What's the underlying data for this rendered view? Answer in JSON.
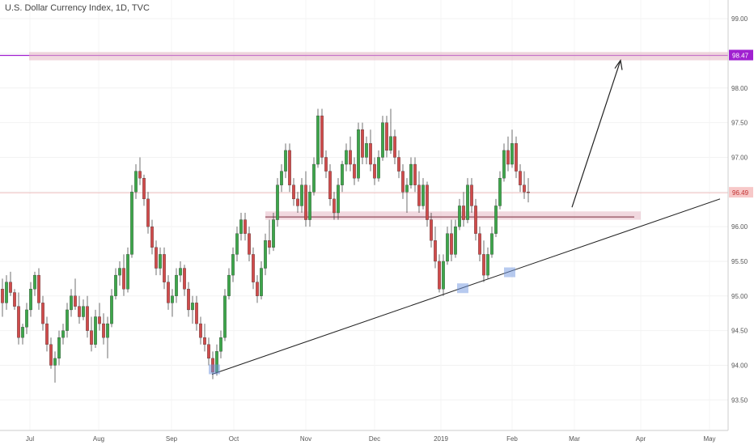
{
  "title": "U.S. Dollar Currency Index, 1D, TVC",
  "colors": {
    "up": "#3da64a",
    "down": "#d04b4b",
    "wick": "#333333",
    "zone": "#e6b8c4",
    "target": "#a020d0",
    "price_line": "#e06060",
    "trendline": "#222222",
    "marker": "#6f95e0"
  },
  "chart_data": {
    "type": "candlestick",
    "ylim": [
      93.2,
      99.2
    ],
    "y_ticks": [
      "93.50",
      "94.00",
      "94.50",
      "95.00",
      "95.50",
      "96.00",
      "96.50",
      "97.00",
      "97.50",
      "98.00",
      "98.50",
      "99.00"
    ],
    "x_ticks": [
      "Jul",
      "Aug",
      "Sep",
      "Oct",
      "Nov",
      "Dec",
      "2019",
      "Feb",
      "Mar",
      "Apr",
      "May"
    ],
    "last_price": "96.49",
    "target_label": "98.47",
    "candles": [
      [
        95.1,
        95.25,
        94.7,
        94.9
      ],
      [
        94.9,
        95.3,
        94.8,
        95.2
      ],
      [
        95.2,
        95.35,
        95.0,
        95.05
      ],
      [
        95.05,
        95.1,
        94.8,
        94.85
      ],
      [
        94.85,
        95.05,
        94.3,
        94.4
      ],
      [
        94.4,
        94.6,
        94.3,
        94.55
      ],
      [
        94.55,
        94.9,
        94.45,
        94.8
      ],
      [
        94.8,
        95.2,
        94.7,
        95.1
      ],
      [
        95.1,
        95.35,
        95.0,
        95.3
      ],
      [
        95.3,
        95.4,
        94.8,
        94.9
      ],
      [
        94.9,
        95.0,
        94.5,
        94.6
      ],
      [
        94.6,
        94.7,
        94.2,
        94.3
      ],
      [
        94.3,
        94.4,
        93.95,
        94.0
      ],
      [
        94.0,
        94.2,
        93.75,
        94.1
      ],
      [
        94.1,
        94.5,
        94.0,
        94.4
      ],
      [
        94.4,
        94.6,
        94.3,
        94.5
      ],
      [
        94.5,
        94.9,
        94.4,
        94.8
      ],
      [
        94.8,
        95.1,
        94.7,
        95.0
      ],
      [
        95.0,
        95.25,
        94.8,
        94.85
      ],
      [
        94.85,
        95.0,
        94.6,
        94.7
      ],
      [
        94.7,
        94.95,
        94.65,
        94.85
      ],
      [
        94.85,
        95.0,
        94.4,
        94.5
      ],
      [
        94.5,
        94.7,
        94.2,
        94.3
      ],
      [
        94.3,
        94.8,
        94.25,
        94.7
      ],
      [
        94.7,
        94.9,
        94.5,
        94.6
      ],
      [
        94.6,
        94.75,
        94.3,
        94.4
      ],
      [
        94.4,
        94.7,
        94.1,
        94.6
      ],
      [
        94.6,
        95.1,
        94.55,
        95.0
      ],
      [
        95.0,
        95.4,
        94.95,
        95.3
      ],
      [
        95.3,
        95.5,
        95.15,
        95.4
      ],
      [
        95.4,
        95.6,
        95.0,
        95.1
      ],
      [
        95.1,
        95.7,
        95.05,
        95.6
      ],
      [
        95.6,
        96.6,
        95.55,
        96.5
      ],
      [
        96.5,
        96.9,
        96.4,
        96.8
      ],
      [
        96.8,
        97.0,
        96.6,
        96.7
      ],
      [
        96.7,
        96.75,
        96.3,
        96.4
      ],
      [
        96.4,
        96.5,
        95.9,
        96.0
      ],
      [
        96.0,
        96.1,
        95.6,
        95.7
      ],
      [
        95.7,
        95.8,
        95.3,
        95.4
      ],
      [
        95.4,
        95.7,
        95.3,
        95.6
      ],
      [
        95.6,
        95.7,
        95.1,
        95.2
      ],
      [
        95.2,
        95.3,
        94.8,
        94.9
      ],
      [
        94.9,
        95.1,
        94.7,
        95.0
      ],
      [
        95.0,
        95.4,
        94.9,
        95.3
      ],
      [
        95.3,
        95.5,
        95.2,
        95.4
      ],
      [
        95.4,
        95.45,
        95.0,
        95.1
      ],
      [
        95.1,
        95.2,
        94.7,
        94.8
      ],
      [
        94.8,
        95.0,
        94.6,
        94.9
      ],
      [
        94.9,
        95.0,
        94.5,
        94.6
      ],
      [
        94.6,
        94.7,
        94.3,
        94.4
      ],
      [
        94.4,
        94.6,
        94.2,
        94.3
      ],
      [
        94.3,
        94.4,
        94.0,
        94.1
      ],
      [
        94.1,
        94.2,
        93.8,
        93.9
      ],
      [
        93.9,
        94.3,
        93.85,
        94.2
      ],
      [
        94.2,
        94.5,
        94.1,
        94.4
      ],
      [
        94.4,
        95.1,
        94.35,
        95.0
      ],
      [
        95.0,
        95.4,
        94.95,
        95.3
      ],
      [
        95.3,
        95.7,
        95.2,
        95.6
      ],
      [
        95.6,
        96.0,
        95.5,
        95.9
      ],
      [
        95.9,
        96.2,
        95.8,
        96.1
      ],
      [
        96.1,
        96.2,
        95.8,
        95.9
      ],
      [
        95.9,
        96.0,
        95.5,
        95.6
      ],
      [
        95.6,
        95.7,
        95.1,
        95.2
      ],
      [
        95.2,
        95.3,
        94.9,
        95.0
      ],
      [
        95.0,
        95.5,
        94.95,
        95.4
      ],
      [
        95.4,
        95.9,
        95.3,
        95.8
      ],
      [
        95.8,
        96.1,
        95.6,
        95.7
      ],
      [
        95.7,
        96.2,
        95.65,
        96.1
      ],
      [
        96.1,
        96.7,
        96.0,
        96.6
      ],
      [
        96.6,
        96.9,
        96.5,
        96.8
      ],
      [
        96.8,
        97.2,
        96.7,
        97.1
      ],
      [
        97.1,
        97.2,
        96.5,
        96.6
      ],
      [
        96.6,
        96.7,
        96.3,
        96.4
      ],
      [
        96.4,
        96.5,
        96.2,
        96.3
      ],
      [
        96.3,
        96.7,
        96.2,
        96.6
      ],
      [
        96.6,
        96.8,
        96.0,
        96.1
      ],
      [
        96.1,
        96.6,
        96.0,
        96.5
      ],
      [
        96.5,
        97.0,
        96.45,
        96.9
      ],
      [
        96.9,
        97.7,
        96.85,
        97.6
      ],
      [
        97.6,
        97.7,
        96.9,
        97.0
      ],
      [
        97.0,
        97.1,
        96.7,
        96.8
      ],
      [
        96.8,
        96.9,
        96.3,
        96.4
      ],
      [
        96.4,
        96.5,
        96.1,
        96.2
      ],
      [
        96.2,
        96.7,
        96.1,
        96.6
      ],
      [
        96.6,
        96.95,
        96.5,
        96.9
      ],
      [
        96.9,
        97.2,
        96.8,
        97.1
      ],
      [
        97.1,
        97.3,
        96.8,
        96.9
      ],
      [
        96.9,
        97.0,
        96.6,
        96.7
      ],
      [
        96.7,
        97.5,
        96.65,
        97.4
      ],
      [
        97.4,
        97.5,
        96.9,
        97.0
      ],
      [
        97.0,
        97.3,
        96.9,
        97.2
      ],
      [
        97.2,
        97.4,
        96.8,
        96.9
      ],
      [
        96.9,
        97.0,
        96.6,
        96.7
      ],
      [
        96.7,
        97.1,
        96.65,
        97.0
      ],
      [
        97.0,
        97.6,
        96.95,
        97.5
      ],
      [
        97.5,
        97.6,
        97.0,
        97.1
      ],
      [
        97.1,
        97.7,
        97.05,
        97.3
      ],
      [
        97.3,
        97.4,
        96.9,
        97.0
      ],
      [
        97.0,
        97.1,
        96.7,
        96.8
      ],
      [
        96.8,
        96.9,
        96.4,
        96.5
      ],
      [
        96.5,
        96.7,
        96.2,
        96.6
      ],
      [
        96.6,
        97.0,
        96.55,
        96.9
      ],
      [
        96.9,
        97.0,
        96.5,
        96.6
      ],
      [
        96.6,
        96.8,
        96.2,
        96.3
      ],
      [
        96.3,
        96.7,
        96.25,
        96.6
      ],
      [
        96.6,
        96.65,
        96.0,
        96.1
      ],
      [
        96.1,
        96.2,
        95.7,
        95.8
      ],
      [
        95.8,
        96.0,
        95.4,
        95.5
      ],
      [
        95.5,
        95.6,
        95.05,
        95.1
      ],
      [
        95.1,
        95.6,
        95.0,
        95.5
      ],
      [
        95.5,
        96.0,
        95.45,
        95.9
      ],
      [
        95.9,
        96.1,
        95.5,
        95.6
      ],
      [
        95.6,
        96.1,
        95.55,
        96.0
      ],
      [
        96.0,
        96.4,
        95.95,
        96.3
      ],
      [
        96.3,
        96.5,
        96.0,
        96.1
      ],
      [
        96.1,
        96.7,
        96.05,
        96.6
      ],
      [
        96.6,
        96.7,
        96.2,
        96.3
      ],
      [
        96.3,
        96.4,
        95.8,
        95.9
      ],
      [
        95.9,
        96.0,
        95.5,
        95.6
      ],
      [
        95.6,
        95.8,
        95.2,
        95.3
      ],
      [
        95.3,
        95.7,
        95.25,
        95.6
      ],
      [
        95.6,
        96.0,
        95.55,
        95.9
      ],
      [
        95.9,
        96.4,
        95.85,
        96.3
      ],
      [
        96.3,
        96.8,
        96.25,
        96.7
      ],
      [
        96.7,
        97.2,
        96.65,
        97.1
      ],
      [
        97.1,
        97.3,
        96.8,
        96.9
      ],
      [
        96.9,
        97.4,
        96.85,
        97.2
      ],
      [
        97.2,
        97.3,
        96.7,
        96.8
      ],
      [
        96.8,
        96.9,
        96.5,
        96.6
      ],
      [
        96.6,
        96.8,
        96.4,
        96.5
      ],
      [
        96.5,
        96.7,
        96.35,
        96.49
      ]
    ]
  }
}
